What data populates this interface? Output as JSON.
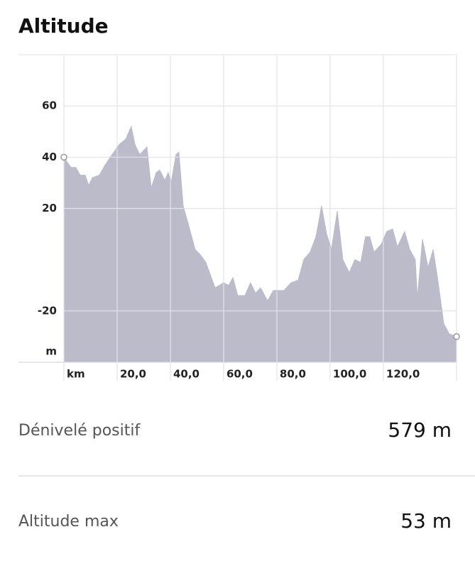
{
  "title": "Altitude",
  "chart_data": {
    "type": "area",
    "color": "#bcbbca",
    "x": [
      0,
      1.3,
      2.7,
      4.5,
      6.1,
      8,
      9.3,
      10.7,
      13.3,
      15.5,
      18.1,
      20.8,
      23.2,
      25.3,
      26.7,
      28.5,
      31.2,
      32.8,
      34.7,
      36,
      37.9,
      39.2,
      40.3,
      42.1,
      43.2,
      44.8,
      46.7,
      49.3,
      51.2,
      53.3,
      56.8,
      60,
      61.9,
      63.5,
      65.3,
      68,
      70.1,
      72,
      73.9,
      76.5,
      78.7,
      82.7,
      85.3,
      88,
      90.1,
      92.5,
      94.7,
      96.8,
      98.7,
      100.5,
      102.7,
      104.8,
      107.2,
      109.3,
      111.5,
      113.3,
      114.9,
      116.5,
      119.2,
      121.3,
      123.5,
      125.3,
      128,
      129.9,
      132,
      132.8,
      134.7,
      136.8,
      138.7,
      140.5,
      142.7,
      144.8,
      147.5
    ],
    "values": [
      40,
      38,
      36,
      36,
      33,
      33,
      29,
      32,
      33,
      37,
      41,
      45,
      47,
      52,
      45,
      41,
      44,
      28,
      34,
      35,
      31,
      34,
      30,
      41,
      42,
      21,
      14,
      4,
      2,
      -1,
      -11,
      -9,
      -10,
      -7,
      -14,
      -14,
      -9,
      -13,
      -11,
      -16,
      -12,
      -12,
      -9,
      -8,
      0,
      3,
      9,
      21,
      10,
      4,
      19,
      0,
      -5,
      0,
      -1,
      9,
      9,
      3,
      6,
      11,
      12,
      5,
      11,
      4,
      0,
      -15,
      8,
      -3,
      4,
      -8,
      -25,
      -29,
      -30
    ],
    "xlim": [
      0,
      147.5
    ],
    "xticks": [
      {
        "value": 0,
        "label": "km"
      },
      {
        "value": 20,
        "label": "20,0"
      },
      {
        "value": 40,
        "label": "40,0"
      },
      {
        "value": 60,
        "label": "60,0"
      },
      {
        "value": 80,
        "label": "80,0"
      },
      {
        "value": 100,
        "label": "100,0"
      },
      {
        "value": 120,
        "label": "120,0"
      }
    ],
    "ylim": [
      -40,
      80
    ],
    "yticks": [
      {
        "value": -40,
        "label": "m"
      },
      -20,
      20,
      40,
      60
    ],
    "grid": true
  },
  "stats": [
    {
      "label": "Dénivelé positif",
      "value": "579 m"
    },
    {
      "label": "Altitude max",
      "value": "53 m"
    }
  ]
}
